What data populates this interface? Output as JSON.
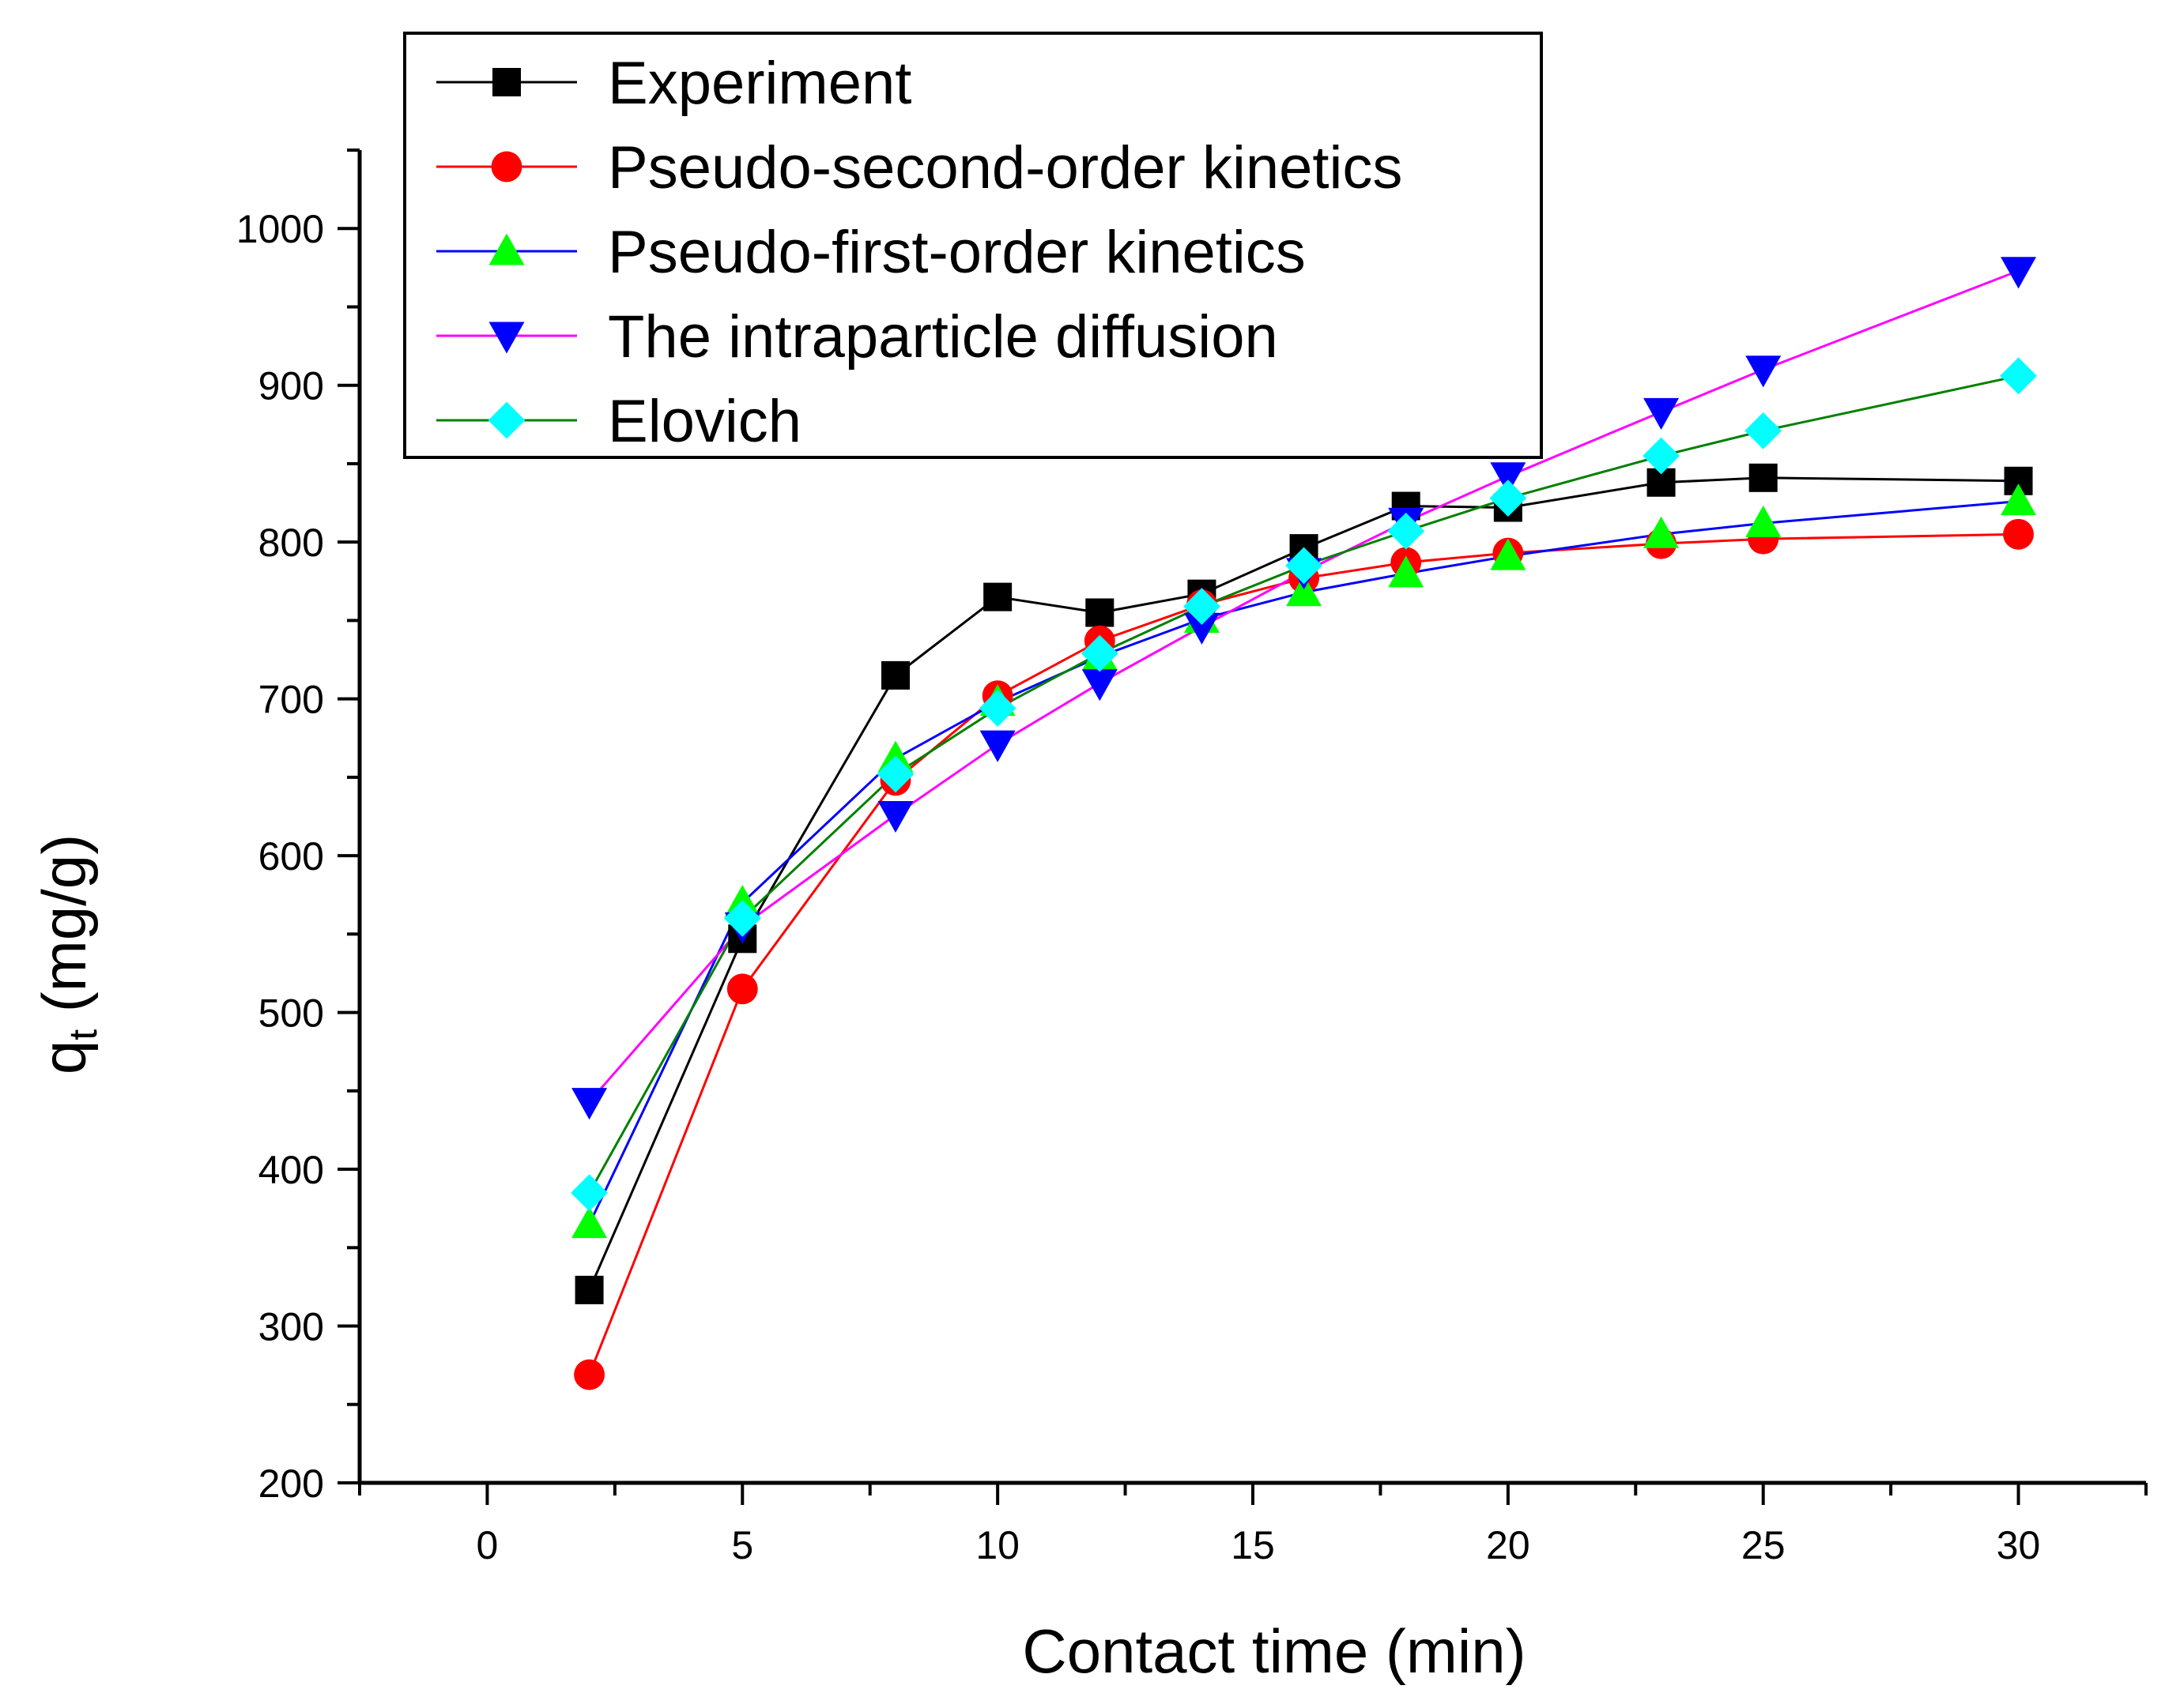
{
  "chart_data": {
    "type": "line",
    "xlabel": "Contact time (min)",
    "ylabel_main": "q",
    "ylabel_sub": "t",
    "ylabel_unit": " (mg/g)",
    "xlim": [
      -2.5,
      32.5
    ],
    "ylim": [
      200,
      1050
    ],
    "x_ticks": [
      0,
      5,
      10,
      15,
      20,
      25,
      30
    ],
    "x_tick_labels": [
      "0",
      "5",
      "10",
      "15",
      "20",
      "25",
      "30"
    ],
    "y_ticks": [
      200,
      300,
      400,
      500,
      600,
      700,
      800,
      900,
      1000
    ],
    "y_tick_labels": [
      "200",
      "300",
      "400",
      "500",
      "600",
      "700",
      "800",
      "900",
      "1000"
    ],
    "x": [
      2,
      5,
      8,
      10,
      12,
      14,
      16,
      18,
      20,
      23,
      25,
      30
    ],
    "legend_position": "top-left",
    "grid": false,
    "series": [
      {
        "name": "Experiment",
        "marker": "square",
        "line_color": "#000000",
        "marker_color": "#000000",
        "values": [
          323,
          547,
          715,
          765,
          755,
          767,
          796,
          823,
          822,
          838,
          841,
          839
        ]
      },
      {
        "name": "Pseudo-second-order kinetics",
        "marker": "circle",
        "line_color": "#ff0000",
        "marker_color": "#ff0000",
        "values": [
          269,
          515,
          648,
          702,
          737,
          760,
          777,
          787,
          793,
          799,
          802,
          805
        ]
      },
      {
        "name": "Pseudo-first-order kinetics",
        "marker": "triangle-up",
        "line_color": "#0000ff",
        "marker_color": "#00ff00",
        "values": [
          365,
          570,
          662,
          698,
          727,
          751,
          768,
          780,
          791,
          805,
          812,
          826
        ]
      },
      {
        "name": "The intraparticle diffusion",
        "marker": "triangle-down",
        "line_color": "#ff00ff",
        "marker_color": "#0000ff",
        "values": [
          443,
          555,
          626,
          671,
          710,
          746,
          781,
          813,
          842,
          883,
          910,
          973
        ]
      },
      {
        "name": "Elovich",
        "marker": "diamond",
        "line_color": "#008000",
        "marker_color": "#00ffff",
        "values": [
          385,
          560,
          652,
          694,
          729,
          759,
          785,
          807,
          828,
          855,
          871,
          906
        ]
      }
    ]
  }
}
